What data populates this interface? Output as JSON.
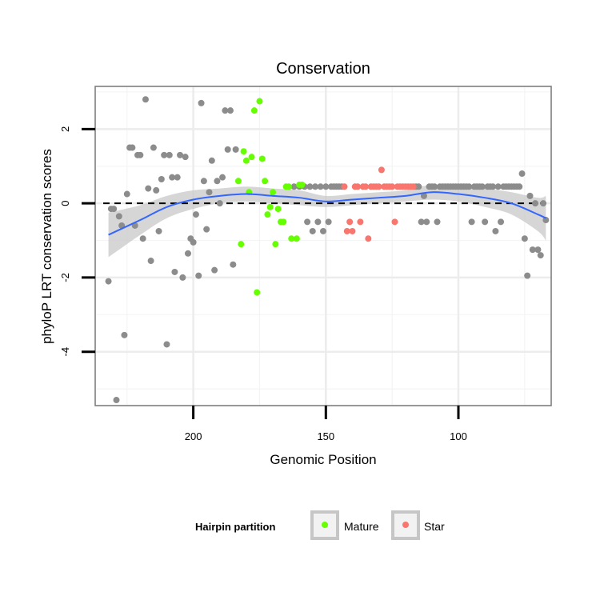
{
  "chart_data": {
    "type": "scatter",
    "title": "Conservation",
    "xlabel": "Genomic Position",
    "ylabel": "phyloP LRT conservation scores",
    "x_reversed": true,
    "xlim": [
      65,
      237
    ],
    "ylim": [
      -5.45,
      3.15
    ],
    "x_ticks": [
      200,
      150,
      100
    ],
    "y_ticks": [
      2,
      0,
      -2,
      -4
    ],
    "x_minor_ticks": [
      225,
      175,
      125,
      75
    ],
    "y_minor_ticks": [
      3,
      1,
      -1,
      -3,
      -5
    ],
    "reference_line": {
      "y": 0,
      "style": "dashed",
      "color": "#000000"
    },
    "legend": {
      "title": "Hairpin partition",
      "position": "bottom",
      "entries": [
        {
          "label": "Mature",
          "color": "#66ff00"
        },
        {
          "label": "Star",
          "color": "#f8766d"
        }
      ]
    },
    "colors": {
      "Other": "#8c8c8c",
      "Mature": "#66ff00",
      "Star": "#f8766d",
      "smooth": "#3366ff",
      "ribbon": "#c8c8c8"
    },
    "series": [
      {
        "name": "Other",
        "points": [
          [
            232,
            -2.1
          ],
          [
            231,
            -0.15
          ],
          [
            230,
            -0.15
          ],
          [
            229,
            -5.3
          ],
          [
            228,
            -0.35
          ],
          [
            227,
            -0.6
          ],
          [
            226,
            -3.55
          ],
          [
            225,
            0.25
          ],
          [
            224,
            1.5
          ],
          [
            223,
            1.5
          ],
          [
            222,
            -0.6
          ],
          [
            221,
            1.3
          ],
          [
            220,
            1.3
          ],
          [
            219,
            -0.95
          ],
          [
            218,
            2.8
          ],
          [
            217,
            0.4
          ],
          [
            216,
            -1.55
          ],
          [
            215,
            1.5
          ],
          [
            214,
            0.35
          ],
          [
            213,
            -0.75
          ],
          [
            212,
            0.65
          ],
          [
            211,
            1.3
          ],
          [
            210,
            -3.8
          ],
          [
            209,
            1.3
          ],
          [
            208,
            0.7
          ],
          [
            207,
            -1.85
          ],
          [
            206,
            0.7
          ],
          [
            205,
            1.3
          ],
          [
            204,
            -2.0
          ],
          [
            203,
            1.25
          ],
          [
            202,
            -1.35
          ],
          [
            201,
            -0.95
          ],
          [
            200,
            -1.05
          ],
          [
            199,
            -0.3
          ],
          [
            198,
            -1.95
          ],
          [
            197,
            2.7
          ],
          [
            196,
            0.6
          ],
          [
            195,
            -0.7
          ],
          [
            194,
            0.3
          ],
          [
            193,
            1.15
          ],
          [
            192,
            -1.8
          ],
          [
            191,
            0.6
          ],
          [
            190,
            0.0
          ],
          [
            189,
            0.7
          ],
          [
            188,
            2.5
          ],
          [
            187,
            1.45
          ],
          [
            186,
            2.5
          ],
          [
            185,
            -1.65
          ],
          [
            184,
            1.45
          ],
          [
            162,
            0.45
          ],
          [
            160,
            0.45
          ],
          [
            158,
            0.45
          ],
          [
            157,
            -0.5
          ],
          [
            156,
            0.45
          ],
          [
            155,
            -0.75
          ],
          [
            154,
            0.45
          ],
          [
            153,
            -0.5
          ],
          [
            152,
            0.45
          ],
          [
            151,
            -0.75
          ],
          [
            150,
            0.45
          ],
          [
            149,
            -0.5
          ],
          [
            148,
            0.45
          ],
          [
            147,
            0.45
          ],
          [
            146,
            0.45
          ],
          [
            145,
            0.45
          ],
          [
            144,
            0.45
          ],
          [
            116,
            0.45
          ],
          [
            115,
            0.45
          ],
          [
            114,
            -0.5
          ],
          [
            113,
            0.2
          ],
          [
            112,
            -0.5
          ],
          [
            111,
            0.45
          ],
          [
            110,
            0.45
          ],
          [
            109,
            0.45
          ],
          [
            108,
            -0.5
          ],
          [
            107,
            0.45
          ],
          [
            106,
            0.45
          ],
          [
            105,
            0.45
          ],
          [
            104,
            0.45
          ],
          [
            103,
            0.45
          ],
          [
            102,
            0.45
          ],
          [
            101,
            0.45
          ],
          [
            100,
            0.45
          ],
          [
            99,
            0.45
          ],
          [
            98,
            0.45
          ],
          [
            97,
            0.45
          ],
          [
            96,
            0.45
          ],
          [
            95,
            -0.5
          ],
          [
            94,
            0.45
          ],
          [
            93,
            0.45
          ],
          [
            92,
            0.45
          ],
          [
            91,
            0.45
          ],
          [
            90,
            -0.5
          ],
          [
            89,
            0.45
          ],
          [
            88,
            0.45
          ],
          [
            87,
            0.45
          ],
          [
            86,
            -0.75
          ],
          [
            85,
            0.45
          ],
          [
            84,
            -0.5
          ],
          [
            83,
            0.45
          ],
          [
            82,
            0.45
          ],
          [
            81,
            0.45
          ],
          [
            80,
            0.45
          ],
          [
            79,
            0.45
          ],
          [
            78,
            0.45
          ],
          [
            77,
            0.45
          ],
          [
            76,
            0.8
          ],
          [
            75,
            -0.95
          ],
          [
            74,
            -1.95
          ],
          [
            73,
            0.2
          ],
          [
            72,
            -1.25
          ],
          [
            71,
            0.0
          ],
          [
            70,
            -1.25
          ],
          [
            69,
            -1.4
          ],
          [
            68,
            0.0
          ],
          [
            67,
            -0.45
          ]
        ]
      },
      {
        "name": "Mature",
        "points": [
          [
            183,
            0.6
          ],
          [
            182,
            -1.1
          ],
          [
            181,
            1.4
          ],
          [
            180,
            1.15
          ],
          [
            179,
            0.3
          ],
          [
            178,
            1.25
          ],
          [
            177,
            2.5
          ],
          [
            176,
            -2.4
          ],
          [
            175,
            2.75
          ],
          [
            174,
            1.2
          ],
          [
            173,
            0.6
          ],
          [
            172,
            -0.3
          ],
          [
            171,
            -0.1
          ],
          [
            170,
            0.3
          ],
          [
            169,
            -1.1
          ],
          [
            168,
            -0.15
          ],
          [
            167,
            -0.5
          ],
          [
            166,
            -0.5
          ],
          [
            165,
            0.45
          ],
          [
            164,
            0.45
          ],
          [
            163,
            -0.95
          ],
          [
            161,
            -0.95
          ],
          [
            160,
            0.5
          ],
          [
            159,
            0.5
          ]
        ]
      },
      {
        "name": "Star",
        "points": [
          [
            143,
            0.45
          ],
          [
            142,
            -0.75
          ],
          [
            141,
            -0.5
          ],
          [
            140,
            -0.75
          ],
          [
            139,
            0.45
          ],
          [
            138,
            0.45
          ],
          [
            137,
            -0.5
          ],
          [
            136,
            0.45
          ],
          [
            135,
            0.45
          ],
          [
            134,
            -0.95
          ],
          [
            133,
            0.45
          ],
          [
            132,
            0.45
          ],
          [
            131,
            0.45
          ],
          [
            130,
            0.45
          ],
          [
            129,
            0.9
          ],
          [
            128,
            0.45
          ],
          [
            127,
            0.45
          ],
          [
            126,
            0.45
          ],
          [
            125,
            0.45
          ],
          [
            124,
            -0.5
          ],
          [
            123,
            0.45
          ],
          [
            122,
            0.45
          ],
          [
            121,
            0.45
          ],
          [
            120,
            0.45
          ],
          [
            119,
            0.45
          ],
          [
            118,
            0.45
          ],
          [
            117,
            0.45
          ]
        ]
      }
    ],
    "smooth": {
      "x": [
        232,
        220,
        210,
        200,
        190,
        180,
        170,
        160,
        150,
        140,
        130,
        120,
        110,
        100,
        90,
        80,
        70,
        67
      ],
      "y": [
        -0.85,
        -0.45,
        -0.1,
        0.1,
        0.2,
        0.25,
        0.2,
        0.15,
        0.05,
        0.1,
        0.15,
        0.2,
        0.3,
        0.25,
        0.15,
        0.0,
        -0.3,
        -0.4
      ],
      "lower": [
        -1.45,
        -0.85,
        -0.4,
        -0.15,
        0.0,
        0.05,
        0.0,
        -0.05,
        -0.1,
        -0.05,
        0.0,
        0.05,
        0.1,
        0.05,
        -0.1,
        -0.3,
        -0.75,
        -1.0
      ],
      "upper": [
        -0.25,
        -0.05,
        0.2,
        0.35,
        0.4,
        0.45,
        0.4,
        0.35,
        0.2,
        0.25,
        0.3,
        0.35,
        0.5,
        0.45,
        0.4,
        0.3,
        0.15,
        0.2
      ]
    }
  }
}
